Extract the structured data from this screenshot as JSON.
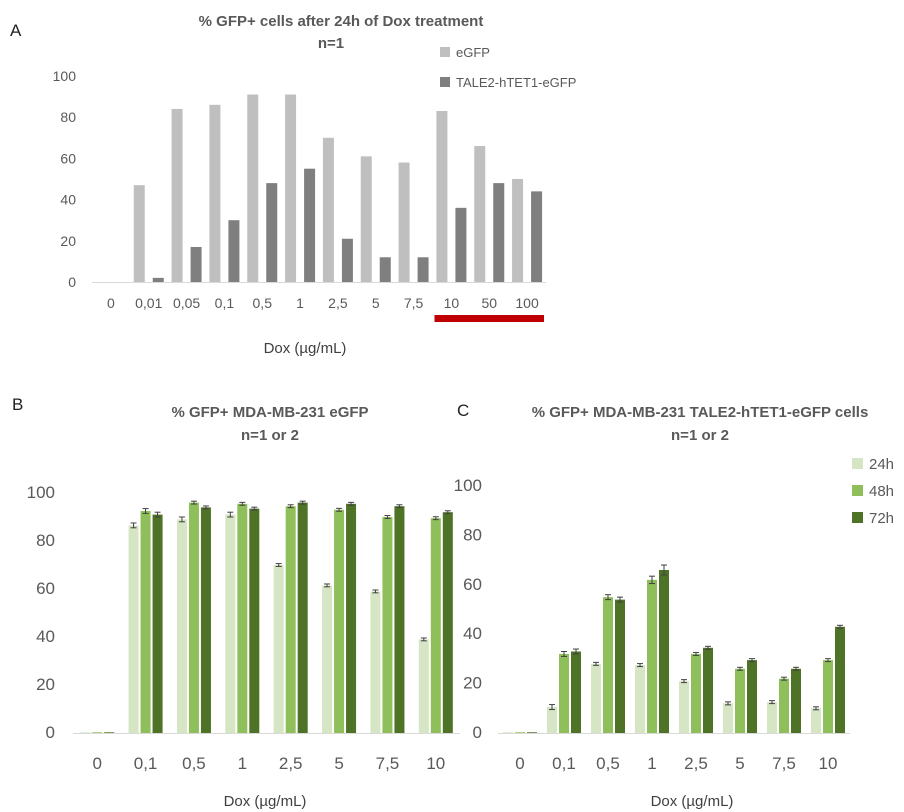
{
  "panels": {
    "A": {
      "letter": "A"
    },
    "B": {
      "letter": "B"
    },
    "C": {
      "letter": "C"
    }
  },
  "chart_data": [
    {
      "id": "A",
      "type": "bar",
      "title": "% GFP+ cells after 24h of Dox treatment",
      "subtitle": "n=1",
      "xlabel": "Dox (µg/mL)",
      "ylabel": "",
      "ylim": [
        0,
        100
      ],
      "yticks": [
        0,
        20,
        40,
        60,
        80,
        100
      ],
      "categories": [
        "0",
        "0,01",
        "0,05",
        "0,1",
        "0,5",
        "1",
        "2,5",
        "5",
        "7,5",
        "10",
        "50",
        "100"
      ],
      "series": [
        {
          "name": "eGFP",
          "color": "#bfbfbf",
          "values": [
            0,
            47,
            84,
            86,
            91,
            91,
            70,
            61,
            58,
            83,
            66,
            50
          ]
        },
        {
          "name": "TALE2-hTET1-eGFP",
          "color": "#7f7f7f",
          "values": [
            0,
            2,
            17,
            30,
            48,
            55,
            21,
            12,
            12,
            36,
            48,
            44
          ]
        }
      ],
      "highlight": {
        "categories": [
          "10",
          "50",
          "100"
        ],
        "color": "#c00000"
      },
      "grid": false,
      "legend_position": "top-right"
    },
    {
      "id": "B",
      "type": "bar",
      "title": "% GFP+ MDA-MB-231 eGFP",
      "subtitle": "n=1 or 2",
      "xlabel": "Dox (µg/mL)",
      "ylabel": "",
      "ylim": [
        0,
        100
      ],
      "yticks": [
        0,
        20,
        40,
        60,
        80,
        100
      ],
      "categories": [
        "0",
        "0,1",
        "0,5",
        "1",
        "2,5",
        "5",
        "7,5",
        "10"
      ],
      "series": [
        {
          "name": "24h",
          "color": "#d6e5c4",
          "values": [
            0.3,
            86.5,
            89,
            91,
            70,
            61.5,
            59,
            39
          ],
          "errors": [
            0,
            1,
            1,
            1,
            0,
            0,
            0,
            0
          ]
        },
        {
          "name": "48h",
          "color": "#8fbf5a",
          "values": [
            0.3,
            92.5,
            96,
            95.5,
            94.5,
            93,
            90,
            89.5
          ],
          "errors": [
            0,
            1,
            0,
            0,
            0,
            0,
            0,
            0
          ]
        },
        {
          "name": "72h",
          "color": "#4e7226",
          "values": [
            0.3,
            91,
            94,
            93.5,
            96,
            95.5,
            94.5,
            92
          ],
          "errors": [
            0,
            1,
            0,
            0,
            0,
            0,
            0,
            0
          ]
        }
      ],
      "grid": false,
      "legend_position": "none"
    },
    {
      "id": "C",
      "type": "bar",
      "title": "% GFP+ MDA-MB-231 TALE2-hTET1-eGFP cells",
      "subtitle": "n=1 or 2",
      "xlabel": "Dox (µg/mL)",
      "ylabel": "",
      "ylim": [
        0,
        100
      ],
      "yticks": [
        0,
        20,
        40,
        60,
        80,
        100
      ],
      "categories": [
        "0",
        "0,1",
        "0,5",
        "1",
        "2,5",
        "5",
        "7,5",
        "10"
      ],
      "series": [
        {
          "name": "24h",
          "color": "#d6e5c4",
          "values": [
            0.3,
            10.5,
            28,
            27.5,
            21,
            12,
            12.5,
            10
          ],
          "errors": [
            0,
            1,
            0,
            0,
            0,
            0,
            0,
            0
          ]
        },
        {
          "name": "48h",
          "color": "#8fbf5a",
          "values": [
            0.3,
            32,
            55,
            62,
            32,
            26,
            22,
            29.5
          ],
          "errors": [
            0,
            1,
            1,
            1.5,
            0,
            0,
            0,
            0
          ]
        },
        {
          "name": "72h",
          "color": "#4e7226",
          "values": [
            0.3,
            33,
            54,
            66,
            34.5,
            29.5,
            26,
            43
          ],
          "errors": [
            0,
            1,
            1,
            2,
            0,
            0,
            0,
            0
          ]
        }
      ],
      "grid": false,
      "legend_position": "top-right"
    }
  ]
}
